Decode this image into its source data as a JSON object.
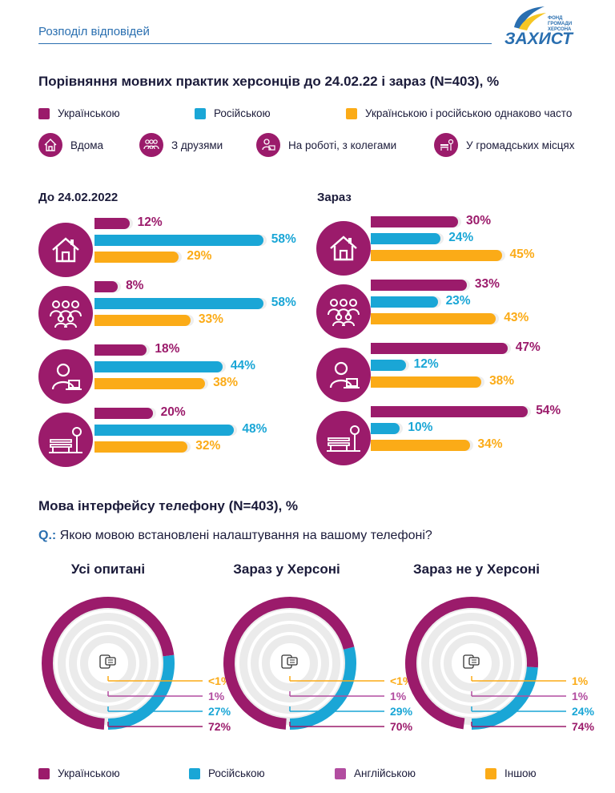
{
  "header": {
    "section_title": "Розподіл відповідей",
    "logo_small_1": "ФОНД",
    "logo_small_2": "ГРОМАДИ",
    "logo_small_3": "ХЕРСОНА",
    "logo_word": "ЗАХИСТ"
  },
  "colors": {
    "ukrainian": "#9b1b6b",
    "russian": "#1aa6d6",
    "both": "#fbab17",
    "english": "#b24da0",
    "other": "#fbab17",
    "ring_bg": "#ededed"
  },
  "lang_section": {
    "title": "Порівняння мовних практик херсонців до 24.02.22 і зараз (N=403), %",
    "legend": [
      {
        "label": "Українською",
        "color": "#9b1b6b"
      },
      {
        "label": "Російською",
        "color": "#1aa6d6"
      },
      {
        "label": "Українською і російською однаково часто",
        "color": "#fbab17"
      }
    ],
    "contexts": [
      {
        "label": "Вдома",
        "icon": "house-icon"
      },
      {
        "label": "З друзями",
        "icon": "friends-icon"
      },
      {
        "label": "На роботі, з колегами",
        "icon": "worker-icon"
      },
      {
        "label": "У громадських місцях",
        "icon": "bench-icon"
      }
    ],
    "before_title": "До 24.02.2022",
    "now_title": "Зараз"
  },
  "phone_section": {
    "title": "Мова інтерфейсу телефону (N=403), %",
    "question_label": "Q.:",
    "question": "Якою мовою встановлені налаштування на вашому телефоні?"
  },
  "bottom_legend": [
    {
      "label": "Українською",
      "color": "#9b1b6b"
    },
    {
      "label": "Російською",
      "color": "#1aa6d6"
    },
    {
      "label": "Англійською",
      "color": "#b24da0"
    },
    {
      "label": "Іншою",
      "color": "#fbab17"
    }
  ],
  "chart_data": [
    {
      "type": "bar",
      "title": "До 24.02.2022",
      "categories": [
        "Вдома",
        "З друзями",
        "На роботі, з колегами",
        "У громадських місцях"
      ],
      "series": [
        {
          "name": "Українською",
          "values": [
            12,
            8,
            18,
            20
          ],
          "labels": [
            "12%",
            "8%",
            "18%",
            "20%"
          ]
        },
        {
          "name": "Російською",
          "values": [
            58,
            58,
            44,
            48
          ],
          "labels": [
            "58%",
            "58%",
            "44%",
            "48%"
          ]
        },
        {
          "name": "Українською і російською однаково часто",
          "values": [
            29,
            33,
            38,
            32
          ],
          "labels": [
            "29%",
            "33%",
            "38%",
            "32%"
          ]
        }
      ],
      "xlim": [
        0,
        60
      ]
    },
    {
      "type": "bar",
      "title": "Зараз",
      "categories": [
        "Вдома",
        "З друзями",
        "На роботі, з колегами",
        "У громадських місцях"
      ],
      "series": [
        {
          "name": "Українською",
          "values": [
            30,
            33,
            47,
            54
          ],
          "labels": [
            "30%",
            "33%",
            "47%",
            "54%"
          ]
        },
        {
          "name": "Російською",
          "values": [
            24,
            23,
            12,
            10
          ],
          "labels": [
            "24%",
            "23%",
            "12%",
            "10%"
          ]
        },
        {
          "name": "Українською і російською однаково часто",
          "values": [
            45,
            43,
            38,
            34
          ],
          "labels": [
            "45%",
            "43%",
            "38%",
            "34%"
          ]
        }
      ],
      "xlim": [
        0,
        60
      ]
    },
    {
      "type": "pie",
      "title": "Усі опитані",
      "slices": [
        {
          "name": "Українською",
          "value": 72,
          "label": "72%"
        },
        {
          "name": "Російською",
          "value": 27,
          "label": "27%"
        },
        {
          "name": "Англійською",
          "value": 1,
          "label": "1%"
        },
        {
          "name": "Іншою",
          "value": 0.5,
          "label": "<1%"
        }
      ]
    },
    {
      "type": "pie",
      "title": "Зараз у Херсоні",
      "slices": [
        {
          "name": "Українською",
          "value": 70,
          "label": "70%"
        },
        {
          "name": "Російською",
          "value": 29,
          "label": "29%"
        },
        {
          "name": "Англійською",
          "value": 1,
          "label": "1%"
        },
        {
          "name": "Іншою",
          "value": 0.5,
          "label": "<1%"
        }
      ]
    },
    {
      "type": "pie",
      "title": "Зараз не у Херсоні",
      "slices": [
        {
          "name": "Українською",
          "value": 74,
          "label": "74%"
        },
        {
          "name": "Російською",
          "value": 24,
          "label": "24%"
        },
        {
          "name": "Англійською",
          "value": 1,
          "label": "1%"
        },
        {
          "name": "Іншою",
          "value": 1,
          "label": "1%"
        }
      ]
    }
  ]
}
